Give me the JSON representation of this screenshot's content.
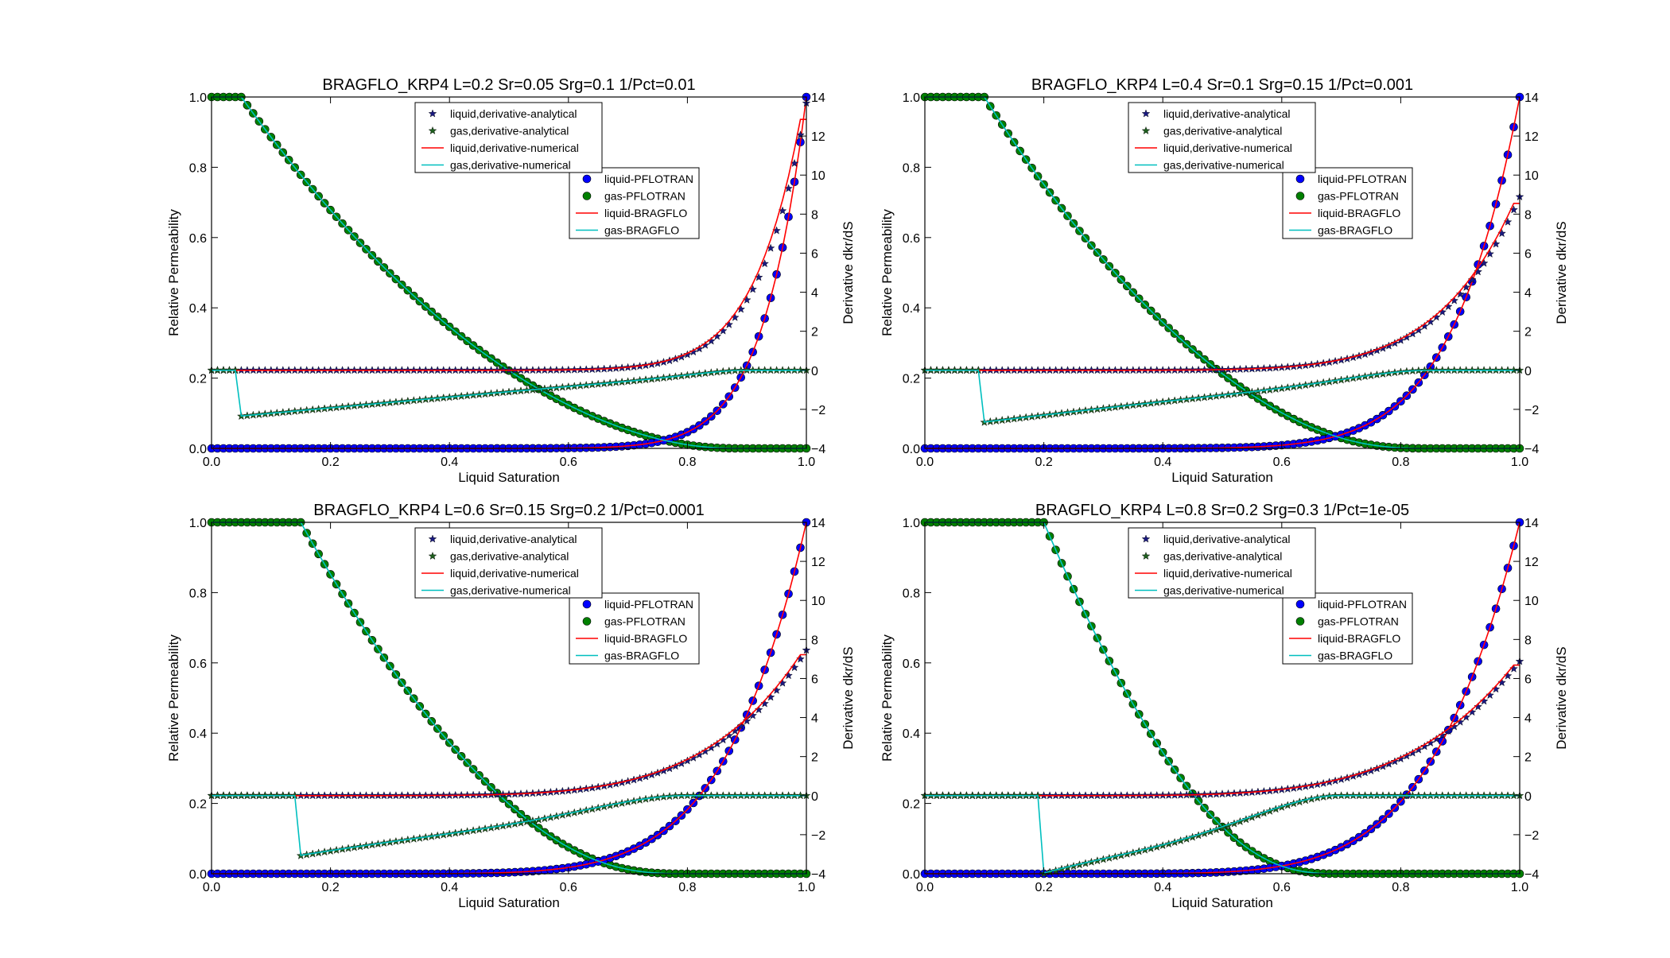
{
  "colors": {
    "liquid_marker": "#0000ff",
    "gas_marker": "#008000",
    "liquid_line": "#ff0000",
    "gas_line": "#00bfbf",
    "liquid_star": "#1a1a80",
    "gas_star": "#1f5f1f"
  },
  "chart_data": [
    {
      "type": "line",
      "title": "BRAGFLO_KRP4 L=0.2 Sr=0.05 Srg=0.1 1/Pct=0.01",
      "params": {
        "L": 0.2,
        "Sr": 0.05,
        "Srg": 0.1,
        "inv_Pct": 0.01
      },
      "xlabel": "Liquid Saturation",
      "ylabel": "Relative Permeability",
      "ylabel_right": "Derivative dkr/dS",
      "xlim": [
        0,
        1
      ],
      "ylim": [
        0,
        1
      ],
      "ylim_right": [
        -4,
        14
      ],
      "xticks": [
        "0.0",
        "0.2",
        "0.4",
        "0.6",
        "0.8",
        "1.0"
      ],
      "yticks": [
        "0.0",
        "0.2",
        "0.4",
        "0.6",
        "0.8",
        "1.0"
      ],
      "yticks_right": [
        "−4",
        "−2",
        "0",
        "2",
        "4",
        "6",
        "8",
        "10",
        "12",
        "14"
      ],
      "legend_upper": [
        "liquid,derivative-analytical",
        "gas,derivative-analytical",
        "liquid,derivative-numerical",
        "gas,derivative-numerical"
      ],
      "legend_lower": [
        "liquid-PFLOTRAN",
        "gas-PFLOTRAN",
        "liquid-BRAGFLO",
        "gas-BRAGFLO"
      ]
    },
    {
      "type": "line",
      "title": "BRAGFLO_KRP4 L=0.4 Sr=0.1 Srg=0.15 1/Pct=0.001",
      "params": {
        "L": 0.4,
        "Sr": 0.1,
        "Srg": 0.15,
        "inv_Pct": 0.001
      },
      "xlabel": "Liquid Saturation",
      "ylabel": "Relative Permeability",
      "ylabel_right": "Derivative dkr/dS",
      "xlim": [
        0,
        1
      ],
      "ylim": [
        0,
        1
      ],
      "ylim_right": [
        -4,
        14
      ],
      "xticks": [
        "0.0",
        "0.2",
        "0.4",
        "0.6",
        "0.8",
        "1.0"
      ],
      "yticks": [
        "0.0",
        "0.2",
        "0.4",
        "0.6",
        "0.8",
        "1.0"
      ],
      "yticks_right": [
        "−4",
        "−2",
        "0",
        "2",
        "4",
        "6",
        "8",
        "10",
        "12",
        "14"
      ],
      "legend_upper": [
        "liquid,derivative-analytical",
        "gas,derivative-analytical",
        "liquid,derivative-numerical",
        "gas,derivative-numerical"
      ],
      "legend_lower": [
        "liquid-PFLOTRAN",
        "gas-PFLOTRAN",
        "liquid-BRAGFLO",
        "gas-BRAGFLO"
      ]
    },
    {
      "type": "line",
      "title": "BRAGFLO_KRP4 L=0.6 Sr=0.15 Srg=0.2 1/Pct=0.0001",
      "params": {
        "L": 0.6,
        "Sr": 0.15,
        "Srg": 0.2,
        "inv_Pct": 0.0001
      },
      "xlabel": "Liquid Saturation",
      "ylabel": "Relative Permeability",
      "ylabel_right": "Derivative dkr/dS",
      "xlim": [
        0,
        1
      ],
      "ylim": [
        0,
        1
      ],
      "ylim_right": [
        -4,
        14
      ],
      "xticks": [
        "0.0",
        "0.2",
        "0.4",
        "0.6",
        "0.8",
        "1.0"
      ],
      "yticks": [
        "0.0",
        "0.2",
        "0.4",
        "0.6",
        "0.8",
        "1.0"
      ],
      "yticks_right": [
        "−4",
        "−2",
        "0",
        "2",
        "4",
        "6",
        "8",
        "10",
        "12",
        "14"
      ],
      "legend_upper": [
        "liquid,derivative-analytical",
        "gas,derivative-analytical",
        "liquid,derivative-numerical",
        "gas,derivative-numerical"
      ],
      "legend_lower": [
        "liquid-PFLOTRAN",
        "gas-PFLOTRAN",
        "liquid-BRAGFLO",
        "gas-BRAGFLO"
      ]
    },
    {
      "type": "line",
      "title": "BRAGFLO_KRP4 L=0.8 Sr=0.2 Srg=0.3 1/Pct=1e-05",
      "params": {
        "L": 0.8,
        "Sr": 0.2,
        "Srg": 0.3,
        "inv_Pct": 1e-05
      },
      "xlabel": "Liquid Saturation",
      "ylabel": "Relative Permeability",
      "ylabel_right": "Derivative dkr/dS",
      "xlim": [
        0,
        1
      ],
      "ylim": [
        0,
        1
      ],
      "ylim_right": [
        -4,
        14
      ],
      "xticks": [
        "0.0",
        "0.2",
        "0.4",
        "0.6",
        "0.8",
        "1.0"
      ],
      "yticks": [
        "0.0",
        "0.2",
        "0.4",
        "0.6",
        "0.8",
        "1.0"
      ],
      "yticks_right": [
        "−4",
        "−2",
        "0",
        "2",
        "4",
        "6",
        "8",
        "10",
        "12",
        "14"
      ],
      "legend_upper": [
        "liquid,derivative-analytical",
        "gas,derivative-analytical",
        "liquid,derivative-numerical",
        "gas,derivative-numerical"
      ],
      "legend_lower": [
        "liquid-PFLOTRAN",
        "gas-PFLOTRAN",
        "liquid-BRAGFLO",
        "gas-BRAGFLO"
      ]
    }
  ]
}
